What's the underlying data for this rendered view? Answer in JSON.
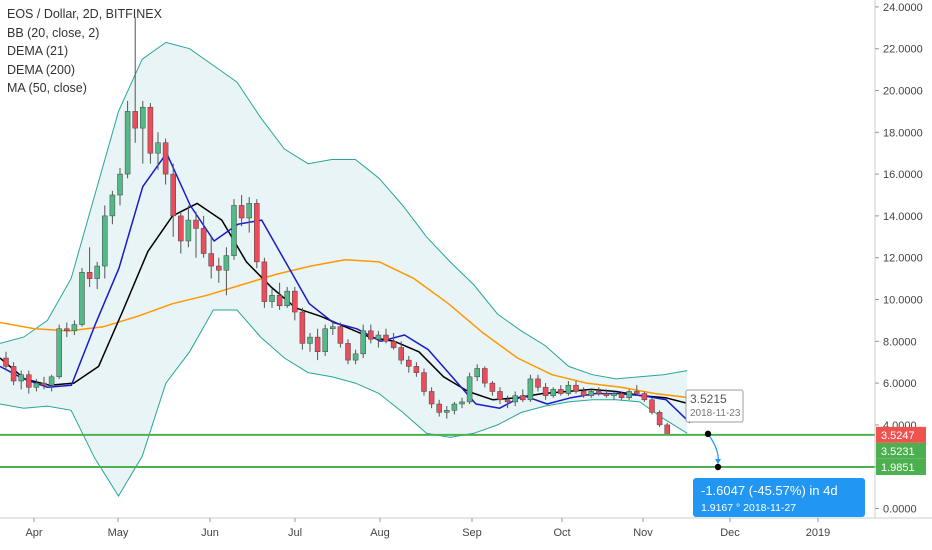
{
  "chart_data": {
    "type": "candlestick",
    "title": "EOS / Dollar, 2D, BITFINEX",
    "indicators": [
      "BB (20, close, 2)",
      "DEMA (21)",
      "DEMA (200)",
      "MA (50, close)"
    ],
    "ylim": [
      -1,
      24.5
    ],
    "y_ticks": [
      "24.0000",
      "22.0000",
      "20.0000",
      "18.0000",
      "16.0000",
      "14.0000",
      "12.0000",
      "10.0000",
      "8.0000",
      "6.0000",
      "4.0000",
      "2.0000",
      "0.0000"
    ],
    "x_ticks": [
      "Apr",
      "May",
      "Jun",
      "Jul",
      "Aug",
      "Sep",
      "Oct",
      "Nov",
      "Dec",
      "2019"
    ],
    "grid": false,
    "candles": [
      [
        7.2,
        7.5,
        6.6,
        6.8
      ],
      [
        6.8,
        7.0,
        5.9,
        6.1
      ],
      [
        6.1,
        6.6,
        5.7,
        6.4
      ],
      [
        6.4,
        6.6,
        5.5,
        5.8
      ],
      [
        5.8,
        6.2,
        5.6,
        6.0
      ],
      [
        6.0,
        6.3,
        5.7,
        5.9
      ],
      [
        5.9,
        6.4,
        5.6,
        6.3
      ],
      [
        6.3,
        8.8,
        6.2,
        8.6
      ],
      [
        8.6,
        8.9,
        8.2,
        8.5
      ],
      [
        8.5,
        9.0,
        8.3,
        8.8
      ],
      [
        8.8,
        11.5,
        8.7,
        11.3
      ],
      [
        11.3,
        12.5,
        10.6,
        11.0
      ],
      [
        11.0,
        11.8,
        10.5,
        11.6
      ],
      [
        11.6,
        14.5,
        11.0,
        14.0
      ],
      [
        14.0,
        15.2,
        13.6,
        15.0
      ],
      [
        15.0,
        16.3,
        14.5,
        16.0
      ],
      [
        16.0,
        19.5,
        15.8,
        19.0
      ],
      [
        19.0,
        23.5,
        17.5,
        18.2
      ],
      [
        18.2,
        19.5,
        16.5,
        19.2
      ],
      [
        19.2,
        19.4,
        16.5,
        17.0
      ],
      [
        17.0,
        18.0,
        16.2,
        17.5
      ],
      [
        17.5,
        17.7,
        15.5,
        16.0
      ],
      [
        16.0,
        16.5,
        13.0,
        14.0
      ],
      [
        14.0,
        14.2,
        12.2,
        12.8
      ],
      [
        12.8,
        14.5,
        12.5,
        13.8
      ],
      [
        13.8,
        14.2,
        12.0,
        13.4
      ],
      [
        13.4,
        14.0,
        12.0,
        12.2
      ],
      [
        12.2,
        13.0,
        11.0,
        11.6
      ],
      [
        11.6,
        12.0,
        10.8,
        11.4
      ],
      [
        11.4,
        12.5,
        10.2,
        12.1
      ],
      [
        12.1,
        14.8,
        11.9,
        14.5
      ],
      [
        14.5,
        15.0,
        13.5,
        13.9
      ],
      [
        13.9,
        14.9,
        13.2,
        14.6
      ],
      [
        14.6,
        14.8,
        11.5,
        11.8
      ],
      [
        11.8,
        12.0,
        9.6,
        9.9
      ],
      [
        9.9,
        10.5,
        9.6,
        10.2
      ],
      [
        10.2,
        10.8,
        9.5,
        9.7
      ],
      [
        9.7,
        10.6,
        9.6,
        10.4
      ],
      [
        10.4,
        10.6,
        9.0,
        9.4
      ],
      [
        9.4,
        9.6,
        7.6,
        7.9
      ],
      [
        7.9,
        8.4,
        7.5,
        8.2
      ],
      [
        8.2,
        8.6,
        7.1,
        7.5
      ],
      [
        7.5,
        8.8,
        7.3,
        8.6
      ],
      [
        8.6,
        9.0,
        8.3,
        8.7
      ],
      [
        8.7,
        8.9,
        7.7,
        7.9
      ],
      [
        7.9,
        8.1,
        6.9,
        7.1
      ],
      [
        7.1,
        7.6,
        6.9,
        7.4
      ],
      [
        7.4,
        8.8,
        7.2,
        8.5
      ],
      [
        8.5,
        8.8,
        7.9,
        8.1
      ],
      [
        8.1,
        8.5,
        7.7,
        8.3
      ],
      [
        8.3,
        8.6,
        7.9,
        8.0
      ],
      [
        8.0,
        8.4,
        7.6,
        7.7
      ],
      [
        7.7,
        8.0,
        6.9,
        7.1
      ],
      [
        7.1,
        7.3,
        6.5,
        6.8
      ],
      [
        6.8,
        7.0,
        6.3,
        6.5
      ],
      [
        6.5,
        6.7,
        5.4,
        5.6
      ],
      [
        5.6,
        5.8,
        4.8,
        5.0
      ],
      [
        5.0,
        5.2,
        4.4,
        4.6
      ],
      [
        4.6,
        4.9,
        4.3,
        4.7
      ],
      [
        4.7,
        5.1,
        4.5,
        5.0
      ],
      [
        5.0,
        5.3,
        4.8,
        5.1
      ],
      [
        5.1,
        6.5,
        5.0,
        6.3
      ],
      [
        6.3,
        6.9,
        6.1,
        6.7
      ],
      [
        6.7,
        6.8,
        5.8,
        6.0
      ],
      [
        6.0,
        6.1,
        5.4,
        5.6
      ],
      [
        5.6,
        5.8,
        5.0,
        5.2
      ],
      [
        5.2,
        5.4,
        4.8,
        5.1
      ],
      [
        5.1,
        5.6,
        4.9,
        5.4
      ],
      [
        5.4,
        5.7,
        5.1,
        5.2
      ],
      [
        5.2,
        6.4,
        5.1,
        6.2
      ],
      [
        6.2,
        6.4,
        5.6,
        5.8
      ],
      [
        5.8,
        6.0,
        5.2,
        5.4
      ],
      [
        5.4,
        5.8,
        5.3,
        5.7
      ],
      [
        5.7,
        5.9,
        5.4,
        5.5
      ],
      [
        5.5,
        6.1,
        5.4,
        5.9
      ],
      [
        5.9,
        6.1,
        5.5,
        5.6
      ],
      [
        5.6,
        5.8,
        5.3,
        5.4
      ],
      [
        5.4,
        5.7,
        5.3,
        5.6
      ],
      [
        5.6,
        5.8,
        5.4,
        5.5
      ],
      [
        5.5,
        5.7,
        5.3,
        5.4
      ],
      [
        5.4,
        5.6,
        5.2,
        5.5
      ],
      [
        5.5,
        5.6,
        5.2,
        5.3
      ],
      [
        5.3,
        5.7,
        5.2,
        5.6
      ],
      [
        5.6,
        5.9,
        5.4,
        5.5
      ],
      [
        5.5,
        5.6,
        5.1,
        5.2
      ],
      [
        5.2,
        5.3,
        4.5,
        4.6
      ],
      [
        4.6,
        4.7,
        3.9,
        4.0
      ],
      [
        4.0,
        4.1,
        3.5,
        3.55
      ]
    ],
    "bb_upper": [
      7.9,
      8.2,
      9.0,
      11.0,
      15.0,
      19.0,
      21.5,
      22.3,
      22.0,
      21.2,
      20.4,
      18.7,
      17.2,
      16.5,
      16.7,
      16.7,
      15.8,
      14.5,
      13.0,
      11.8,
      10.7,
      9.3,
      8.5,
      7.8,
      6.8,
      6.4,
      6.2,
      6.3,
      6.4,
      6.6
    ],
    "bb_lower": [
      5.0,
      4.8,
      4.9,
      4.7,
      2.4,
      0.6,
      2.5,
      6.0,
      7.5,
      9.5,
      9.5,
      8.2,
      7.2,
      6.5,
      6.3,
      6.0,
      5.5,
      4.6,
      3.6,
      3.4,
      3.6,
      4.0,
      4.6,
      4.9,
      5.1,
      5.2,
      5.2,
      5.1,
      4.3,
      3.6
    ],
    "dema_21": [
      6.8,
      6.2,
      5.8,
      5.9,
      8.8,
      11.5,
      15.4,
      17.0,
      14.5,
      12.8,
      13.6,
      13.8,
      11.8,
      9.8,
      8.9,
      8.6,
      8.0,
      8.3,
      7.6,
      6.3,
      5.0,
      4.8,
      5.4,
      5.0,
      5.3,
      5.5,
      5.5,
      5.4,
      5.2,
      4.1
    ],
    "dema_200": [
      7.2,
      6.2,
      5.9,
      6.0,
      6.8,
      9.5,
      12.3,
      14.0,
      14.6,
      13.8,
      11.8,
      10.6,
      9.6,
      9.2,
      8.7,
      8.2,
      8.0,
      7.5,
      6.3,
      5.6,
      5.2,
      5.3,
      5.5,
      5.6,
      5.7,
      5.6,
      5.4,
      5.3,
      5.0
    ],
    "ma_50": [
      8.9,
      8.6,
      8.5,
      8.7,
      9.2,
      9.8,
      10.2,
      10.7,
      11.2,
      11.6,
      11.9,
      11.8,
      11.0,
      9.8,
      8.4,
      7.2,
      6.4,
      6.0,
      5.8,
      5.5,
      5.3
    ],
    "horizontal_levels": [
      3.5231,
      1.9851
    ],
    "price_tags": [
      "3.5247",
      "3.5231",
      "1.9851"
    ],
    "tooltip_point": {
      "value": "3.5215",
      "date": "2018-11-23"
    },
    "measure": {
      "text": "-1.6047 (-45.57%) in 4d",
      "value": "1.9167",
      "date": "2018-11-27"
    },
    "colors": {
      "up": "#53b987",
      "down": "#eb4d5c",
      "bb": "#26a69a",
      "bb_fill": "#e9f4f6",
      "dema_21": "#1a1acc",
      "dema_200": "#000000",
      "ma_50": "#ff9800",
      "level": "#4caf50",
      "tag_red": "#ef5350",
      "measure": "#2196f3"
    }
  }
}
